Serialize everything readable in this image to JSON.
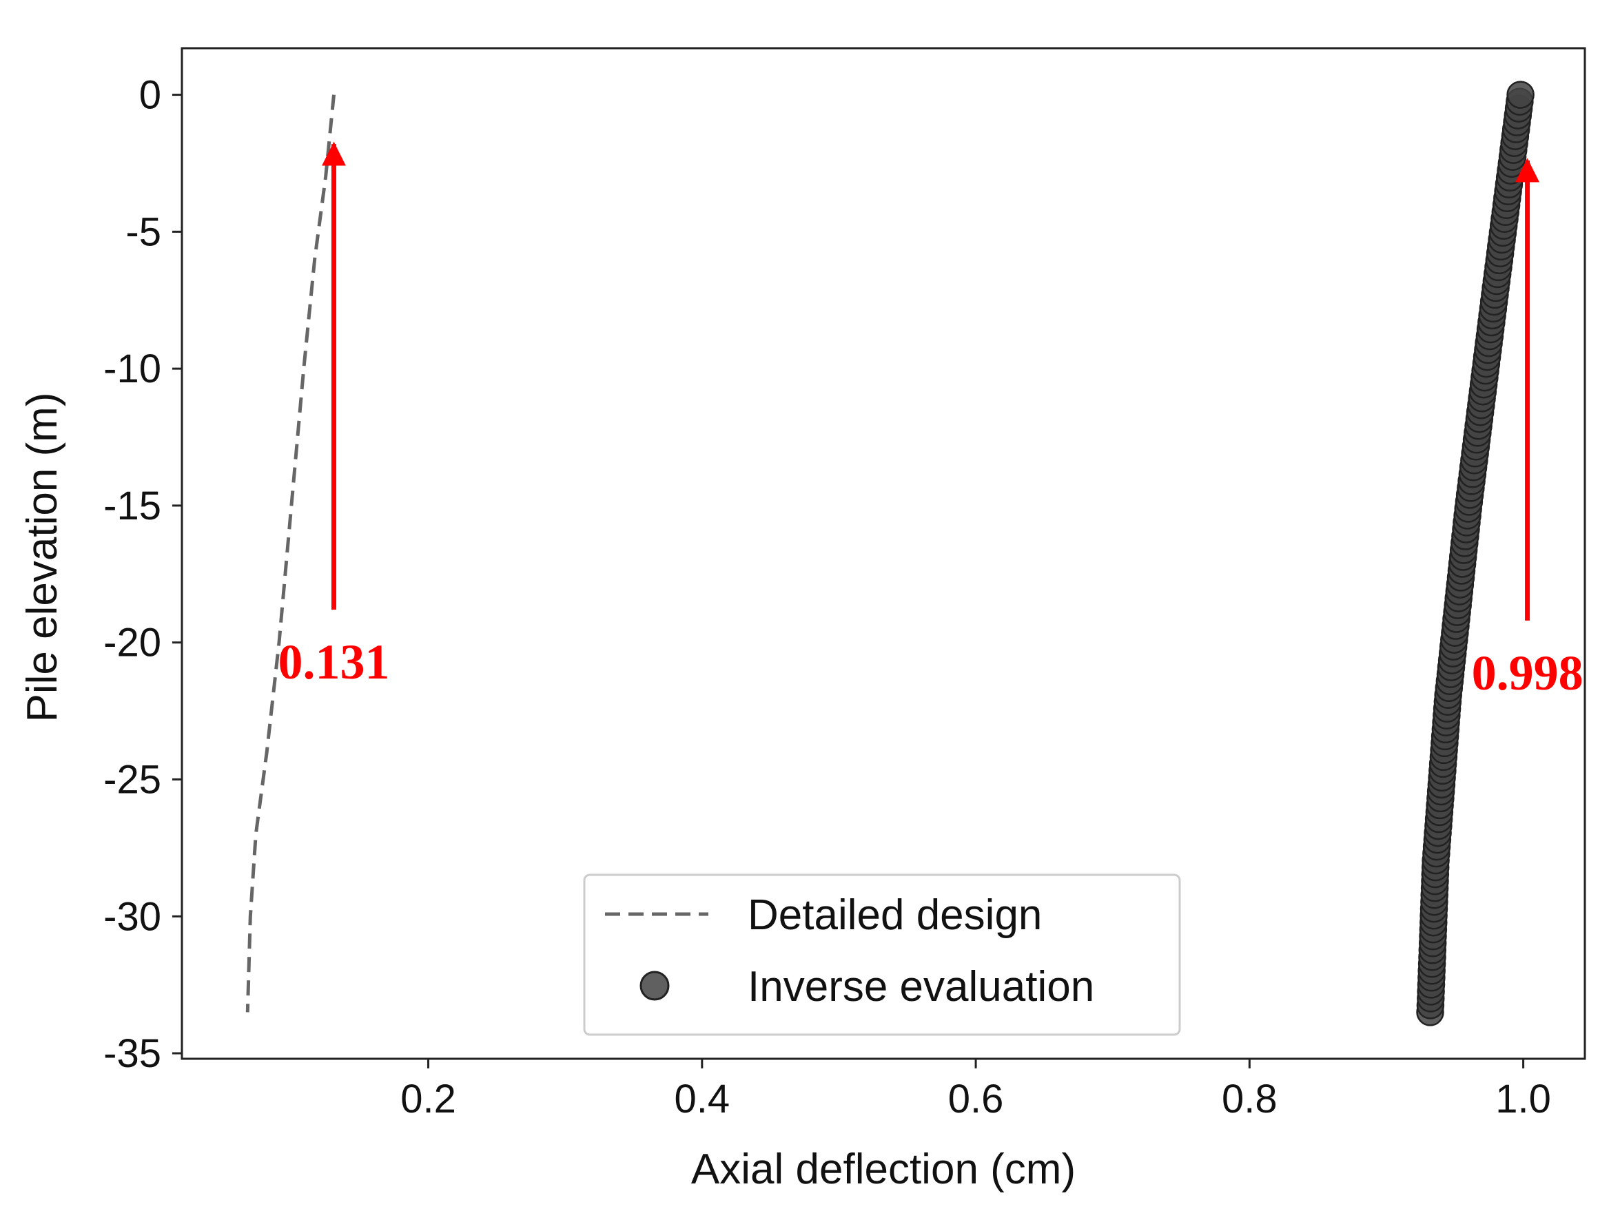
{
  "chart_data": {
    "type": "scatter",
    "xlabel": "Axial deflection (cm)",
    "ylabel": "Pile elevation (m)",
    "xlim": [
      0.02,
      1.045
    ],
    "ylim": [
      -35.2,
      1.7
    ],
    "xticks": [
      0.2,
      0.4,
      0.6,
      0.8,
      1.0
    ],
    "xtick_labels": [
      "0.2",
      "0.4",
      "0.6",
      "0.8",
      "1.0"
    ],
    "yticks": [
      0,
      -5,
      -10,
      -15,
      -20,
      -25,
      -30,
      -35
    ],
    "ytick_labels": [
      "0",
      "-5",
      "-10",
      "-15",
      "-20",
      "-25",
      "-30",
      "-35"
    ],
    "grid": false,
    "legend_position": "lower-center",
    "series": [
      {
        "name": "Detailed design",
        "kind": "dashed-line",
        "color": "#666666",
        "points": [
          {
            "x": 0.131,
            "y": 0
          },
          {
            "x": 0.125,
            "y": -3
          },
          {
            "x": 0.117,
            "y": -6
          },
          {
            "x": 0.109,
            "y": -10
          },
          {
            "x": 0.1,
            "y": -15
          },
          {
            "x": 0.091,
            "y": -20
          },
          {
            "x": 0.082,
            "y": -24
          },
          {
            "x": 0.074,
            "y": -27
          },
          {
            "x": 0.07,
            "y": -30
          },
          {
            "x": 0.068,
            "y": -33.5
          }
        ]
      },
      {
        "name": "Inverse evaluation",
        "kind": "markers",
        "color": "#444444",
        "points": [
          {
            "x": 0.998,
            "y": 0
          },
          {
            "x": 0.98,
            "y": -7
          },
          {
            "x": 0.96,
            "y": -15
          },
          {
            "x": 0.945,
            "y": -22
          },
          {
            "x": 0.936,
            "y": -28
          },
          {
            "x": 0.932,
            "y": -33.5
          }
        ]
      }
    ],
    "annotations": [
      {
        "text": "0.131",
        "color": "#ff0000",
        "arrow_from": {
          "x": 0.131,
          "y": -18.8
        },
        "arrow_to": {
          "x": 0.131,
          "y": -1.8
        }
      },
      {
        "text": "0.998",
        "color": "#ff0000",
        "arrow_from": {
          "x": 1.003,
          "y": -19.2
        },
        "arrow_to": {
          "x": 1.003,
          "y": -2.4
        }
      }
    ]
  }
}
